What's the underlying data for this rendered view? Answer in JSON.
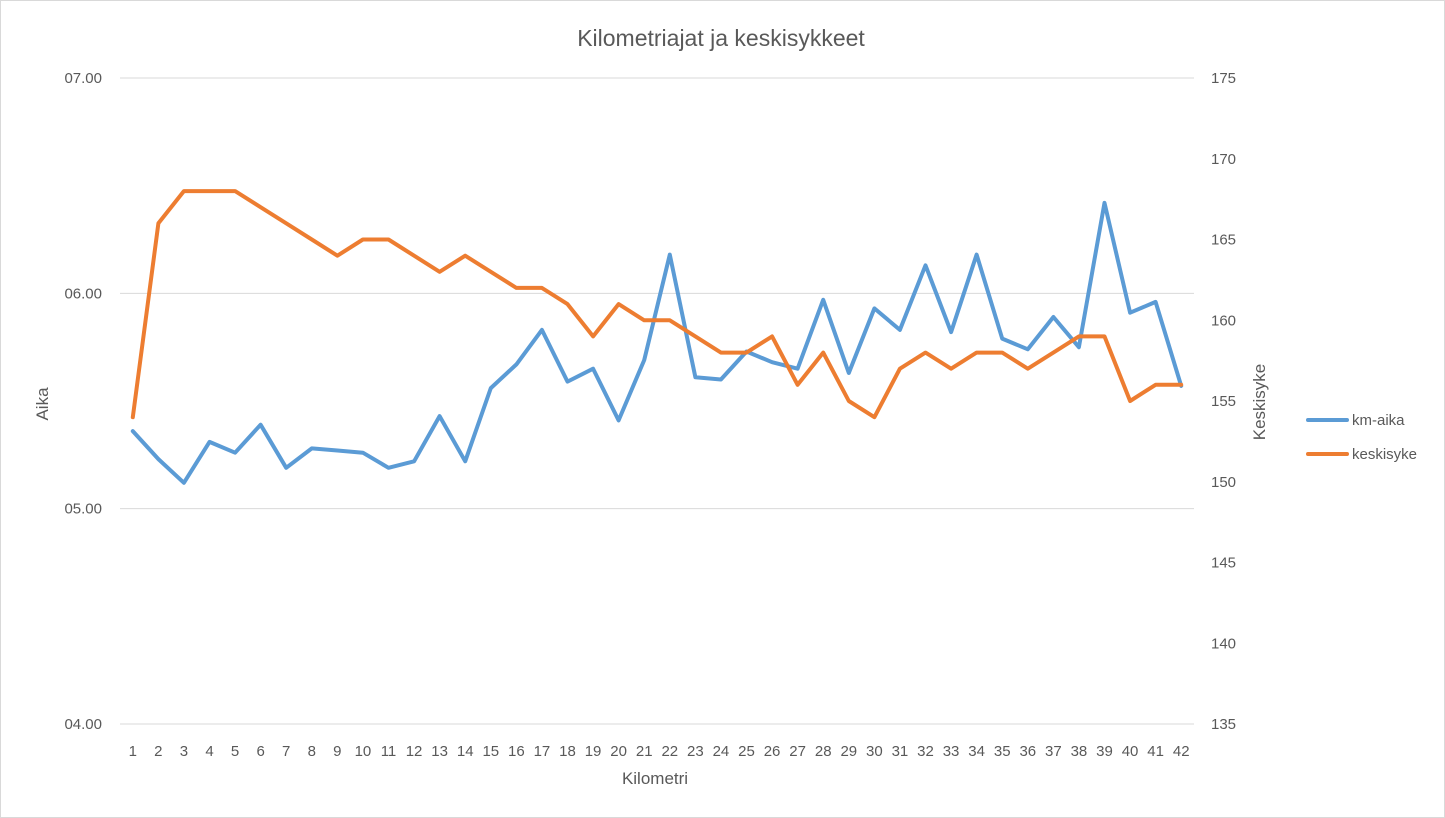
{
  "chart_data": {
    "type": "line",
    "title": "Kilometriajat ja keskisykkeet",
    "xlabel": "Kilometri",
    "ylabel_left": "Aika",
    "ylabel_right": "Keskisyke",
    "categories": [
      "1",
      "2",
      "3",
      "4",
      "5",
      "6",
      "7",
      "8",
      "9",
      "10",
      "11",
      "12",
      "13",
      "14",
      "15",
      "16",
      "17",
      "18",
      "19",
      "20",
      "21",
      "22",
      "23",
      "24",
      "25",
      "26",
      "27",
      "28",
      "29",
      "30",
      "31",
      "32",
      "33",
      "34",
      "35",
      "36",
      "37",
      "38",
      "39",
      "40",
      "41",
      "42"
    ],
    "left_axis": {
      "ticks": [
        4,
        5,
        6,
        7
      ],
      "tick_labels": [
        "04.00",
        "05.00",
        "06.00",
        "07.00"
      ],
      "ylim": [
        4,
        7
      ]
    },
    "right_axis": {
      "ticks": [
        135,
        140,
        145,
        150,
        155,
        160,
        165,
        170,
        175
      ],
      "tick_labels": [
        "135",
        "140",
        "145",
        "150",
        "155",
        "160",
        "165",
        "170",
        "175"
      ],
      "ylim": [
        135,
        175
      ]
    },
    "series": [
      {
        "name": "km-aika",
        "axis": "left",
        "color": "#5b9bd5",
        "values": [
          5.36,
          5.23,
          5.12,
          5.31,
          5.26,
          5.39,
          5.19,
          5.28,
          5.27,
          5.26,
          5.19,
          5.22,
          5.43,
          5.22,
          5.56,
          5.67,
          5.83,
          5.59,
          5.65,
          5.41,
          5.69,
          6.18,
          5.61,
          5.6,
          5.73,
          5.68,
          5.65,
          5.97,
          5.63,
          5.93,
          5.83,
          6.13,
          5.82,
          6.18,
          5.79,
          5.74,
          5.89,
          5.75,
          6.42,
          5.91,
          5.96,
          5.57
        ]
      },
      {
        "name": "keskisyke",
        "axis": "right",
        "color": "#ed7d31",
        "values": [
          154,
          166,
          168,
          168,
          168,
          167,
          166,
          165,
          164,
          165,
          165,
          164,
          163,
          164,
          163,
          162,
          162,
          161,
          159,
          161,
          160,
          160,
          159,
          158,
          158,
          159,
          156,
          158,
          155,
          154,
          157,
          158,
          157,
          158,
          158,
          157,
          158,
          159,
          159,
          155,
          156,
          156
        ]
      }
    ],
    "grid": true,
    "legend_position": "right"
  }
}
